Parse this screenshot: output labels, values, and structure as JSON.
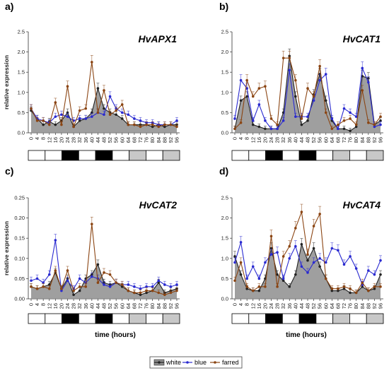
{
  "colors": {
    "white": "#222222",
    "blue": "#2a2ad0",
    "farred": "#8b4513",
    "area": "#8e8e8e",
    "bar_light": "#ffffff",
    "bar_dark": "#000000",
    "bar_farred": "#c8c8c8"
  },
  "xlabel": "time (hours)",
  "legend": [
    "white",
    "blue",
    "farred"
  ],
  "light_bar": [
    "light",
    "light",
    "dark",
    "light",
    "dark",
    "light",
    "farred",
    "light",
    "farred"
  ],
  "chart_data": [
    {
      "type": "line",
      "panel_label": "a)",
      "title": "HvAPX1",
      "ylabel": "relative expression",
      "ylim": [
        0,
        2.5
      ],
      "yticks": [
        "0.0",
        "0.5",
        "1.0",
        "1.5",
        "2.0",
        "2.5"
      ],
      "x": [
        0,
        4,
        8,
        12,
        16,
        20,
        24,
        28,
        32,
        36,
        40,
        44,
        48,
        52,
        56,
        60,
        64,
        68,
        72,
        76,
        80,
        84,
        88,
        92,
        96
      ],
      "series": [
        {
          "name": "white",
          "values": [
            0.55,
            0.35,
            0.2,
            0.28,
            0.2,
            0.3,
            0.5,
            0.15,
            0.3,
            0.35,
            0.5,
            1.1,
            0.6,
            0.5,
            0.45,
            0.35,
            0.2,
            0.2,
            0.2,
            0.2,
            0.15,
            0.2,
            0.15,
            0.2,
            0.2
          ]
        },
        {
          "name": "blue",
          "values": [
            0.6,
            0.35,
            0.3,
            0.25,
            0.4,
            0.45,
            0.4,
            0.3,
            0.35,
            0.35,
            0.4,
            0.5,
            0.45,
            0.9,
            0.6,
            0.5,
            0.45,
            0.35,
            0.3,
            0.25,
            0.25,
            0.2,
            0.2,
            0.2,
            0.3
          ]
        },
        {
          "name": "farred",
          "values": [
            0.6,
            0.3,
            0.3,
            0.2,
            0.75,
            0.2,
            1.15,
            0.15,
            0.55,
            0.6,
            1.75,
            0.5,
            1.05,
            0.45,
            0.55,
            0.7,
            0.2,
            0.2,
            0.15,
            0.2,
            0.2,
            0.15,
            0.2,
            0.2,
            0.15
          ]
        }
      ]
    },
    {
      "type": "line",
      "panel_label": "b)",
      "title": "HvCAT1",
      "ylabel": "",
      "ylim": [
        0,
        2.5
      ],
      "yticks": [
        "0.0",
        "0.5",
        "1.0",
        "1.5",
        "2.0",
        "2.5"
      ],
      "x": [
        0,
        4,
        8,
        12,
        16,
        20,
        24,
        28,
        32,
        36,
        40,
        44,
        48,
        52,
        56,
        60,
        64,
        68,
        72,
        76,
        80,
        84,
        88,
        92,
        96
      ],
      "series": [
        {
          "name": "white",
          "values": [
            0.1,
            0.8,
            0.9,
            0.2,
            0.15,
            0.1,
            0.1,
            0.1,
            0.5,
            1.9,
            0.9,
            0.2,
            0.3,
            0.95,
            1.45,
            0.8,
            0.3,
            0.1,
            0.1,
            0.05,
            0.15,
            1.4,
            1.35,
            0.2,
            0.3
          ]
        },
        {
          "name": "blue",
          "values": [
            0.35,
            1.3,
            1.1,
            0.3,
            0.7,
            0.3,
            0.1,
            0.1,
            0.3,
            1.55,
            0.4,
            0.4,
            0.4,
            0.8,
            1.3,
            1.45,
            0.35,
            0.1,
            0.6,
            0.5,
            0.4,
            1.6,
            1.25,
            0.15,
            0.2
          ]
        },
        {
          "name": "farred",
          "values": [
            0.1,
            0.25,
            1.3,
            0.9,
            1.1,
            1.15,
            0.35,
            0.2,
            1.85,
            1.85,
            1.3,
            0.35,
            1.1,
            0.9,
            1.65,
            0.5,
            0.1,
            0.2,
            0.3,
            0.35,
            0.2,
            1.05,
            0.25,
            0.2,
            0.4
          ]
        }
      ]
    },
    {
      "type": "line",
      "panel_label": "c)",
      "title": "HvCAT2",
      "ylabel": "relative expression",
      "ylim": [
        0,
        0.25
      ],
      "yticks": [
        "0.00",
        "0.05",
        "0.10",
        "0.15",
        "0.20",
        "0.25"
      ],
      "x": [
        0,
        4,
        8,
        12,
        16,
        20,
        24,
        28,
        32,
        36,
        40,
        44,
        48,
        52,
        56,
        60,
        64,
        68,
        72,
        76,
        80,
        84,
        88,
        92,
        96
      ],
      "series": [
        {
          "name": "white",
          "values": [
            0.03,
            0.025,
            0.03,
            0.035,
            0.065,
            0.025,
            0.05,
            0.01,
            0.02,
            0.05,
            0.06,
            0.085,
            0.04,
            0.035,
            0.04,
            0.03,
            0.02,
            0.015,
            0.01,
            0.015,
            0.02,
            0.04,
            0.015,
            0.02,
            0.025
          ]
        },
        {
          "name": "blue",
          "values": [
            0.045,
            0.05,
            0.04,
            0.06,
            0.145,
            0.02,
            0.045,
            0.025,
            0.05,
            0.04,
            0.055,
            0.05,
            0.035,
            0.03,
            0.04,
            0.035,
            0.035,
            0.03,
            0.025,
            0.03,
            0.03,
            0.045,
            0.035,
            0.03,
            0.035
          ]
        },
        {
          "name": "farred",
          "values": [
            0.03,
            0.025,
            0.03,
            0.025,
            0.07,
            0.025,
            0.07,
            0.02,
            0.03,
            0.03,
            0.185,
            0.04,
            0.065,
            0.06,
            0.04,
            0.035,
            0.02,
            0.015,
            0.015,
            0.02,
            0.02,
            0.015,
            0.01,
            0.015,
            0.02
          ]
        }
      ]
    },
    {
      "type": "line",
      "panel_label": "d)",
      "title": "HvCAT4",
      "ylabel": "",
      "ylim": [
        0,
        2.5
      ],
      "yticks": [
        "0.0",
        "0.5",
        "1.0",
        "1.5",
        "2.0",
        "2.5"
      ],
      "x": [
        0,
        4,
        8,
        12,
        16,
        20,
        24,
        28,
        32,
        36,
        40,
        44,
        48,
        52,
        56,
        60,
        64,
        68,
        72,
        76,
        80,
        84,
        88,
        92,
        96
      ],
      "series": [
        {
          "name": "white",
          "values": [
            1.05,
            0.6,
            0.25,
            0.2,
            0.2,
            0.5,
            1.25,
            0.6,
            0.45,
            0.3,
            0.6,
            1.35,
            0.95,
            1.25,
            0.8,
            0.5,
            0.2,
            0.2,
            0.25,
            0.15,
            0.15,
            0.3,
            0.2,
            0.25,
            0.6
          ]
        },
        {
          "name": "blue",
          "values": [
            0.9,
            1.4,
            0.5,
            0.8,
            0.5,
            0.9,
            1.1,
            1.15,
            0.5,
            1.0,
            1.3,
            0.8,
            0.65,
            0.9,
            1.0,
            0.9,
            1.25,
            1.2,
            0.85,
            1.05,
            0.75,
            0.35,
            0.7,
            0.6,
            0.95
          ]
        },
        {
          "name": "farred",
          "values": [
            0.45,
            0.9,
            0.3,
            0.2,
            0.3,
            0.3,
            1.55,
            0.3,
            1.05,
            1.3,
            1.75,
            2.15,
            1.1,
            1.8,
            2.1,
            0.5,
            0.25,
            0.25,
            0.3,
            0.25,
            0.15,
            0.4,
            0.2,
            0.3,
            0.3
          ]
        }
      ]
    }
  ]
}
